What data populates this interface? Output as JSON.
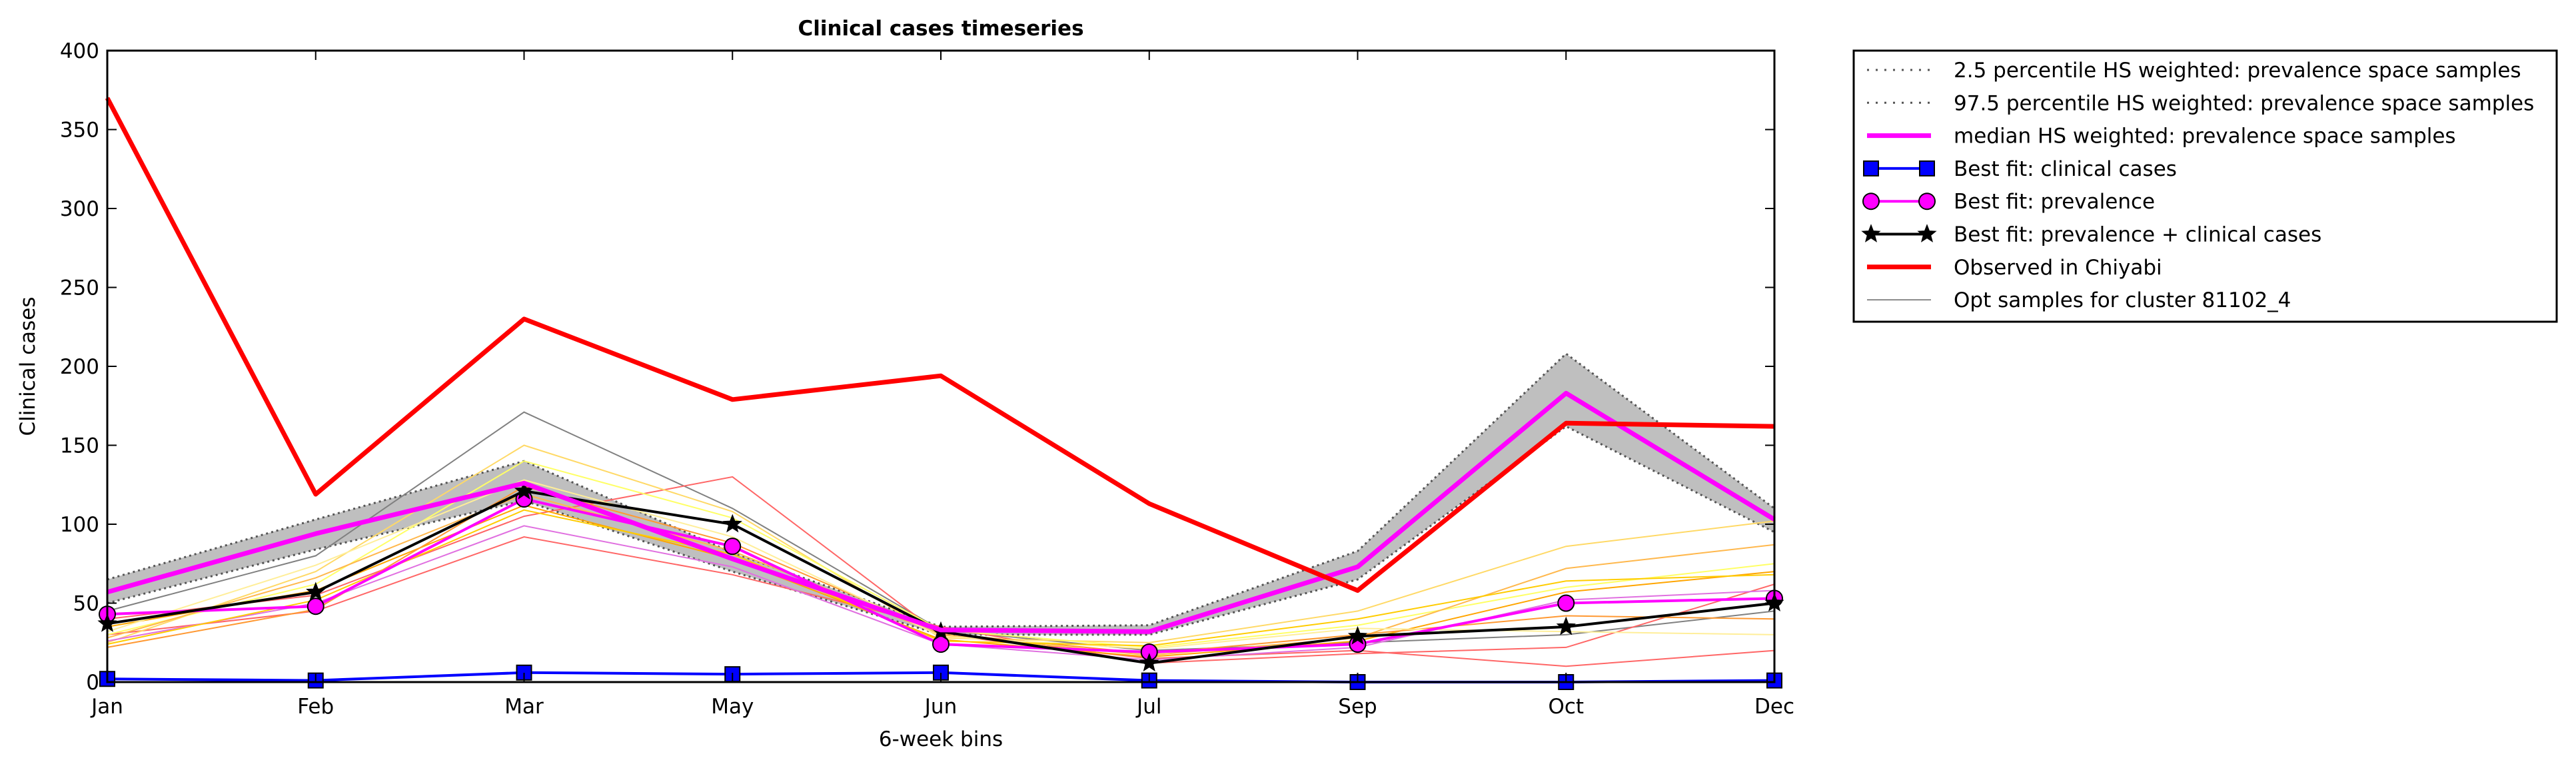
{
  "chart_data": {
    "type": "line",
    "title": "Clinical cases timeseries",
    "xlabel": "6-week bins",
    "ylabel": "Clinical cases",
    "categories": [
      "Jan",
      "Feb",
      "Mar",
      "May",
      "Jun",
      "Jul",
      "Sep",
      "Oct",
      "Dec"
    ],
    "ylim": [
      0,
      400
    ],
    "yticks": [
      "0",
      "50",
      "100",
      "150",
      "200",
      "250",
      "300",
      "350",
      "400"
    ],
    "grid": false,
    "legend_position": "outside-top-right",
    "band": {
      "lower_label": "2.5 percentile HS weighted: prevalence space samples",
      "upper_label": "97.5 percentile HS weighted: prevalence space samples",
      "lower": [
        50,
        84,
        115,
        70,
        30,
        30,
        65,
        162,
        95
      ],
      "upper": [
        65,
        103,
        140,
        82,
        35,
        36,
        83,
        208,
        110
      ],
      "color": "#bfbfbf"
    },
    "series": [
      {
        "name": "median HS weighted: prevalence space samples",
        "values": [
          57,
          94,
          126,
          78,
          33,
          32,
          73,
          183,
          103
        ],
        "color": "#ff00ff",
        "marker": "none",
        "width": 7
      },
      {
        "name": "Best fit: clinical cases",
        "values": [
          2,
          1,
          6,
          5,
          6,
          1,
          0,
          0,
          1
        ],
        "color": "#0000ff",
        "marker": "square",
        "width": 4
      },
      {
        "name": "Best fit: prevalence",
        "values": [
          43,
          48,
          116,
          86,
          24,
          19,
          24,
          50,
          53
        ],
        "color": "#ff00ff",
        "marker": "circle",
        "width": 4
      },
      {
        "name": "Best fit: prevalence + clinical cases",
        "values": [
          37,
          57,
          121,
          100,
          32,
          12,
          29,
          35,
          50
        ],
        "color": "#000000",
        "marker": "star",
        "width": 4
      },
      {
        "name": "Observed in Chiyabi",
        "values": [
          370,
          119,
          230,
          179,
          194,
          113,
          58,
          164,
          162
        ],
        "color": "#ff0000",
        "marker": "none",
        "width": 7
      }
    ],
    "samples": {
      "name": "Opt samples for cluster 81102_4",
      "legend_color": "#888888",
      "lines": [
        {
          "color": "#808080",
          "values": [
            45,
            80,
            171,
            110,
            33,
            20,
            25,
            30,
            45
          ]
        },
        {
          "color": "#ff6666",
          "values": [
            40,
            55,
            105,
            130,
            30,
            15,
            20,
            10,
            20
          ]
        },
        {
          "color": "#ff6666",
          "values": [
            30,
            45,
            92,
            68,
            35,
            12,
            18,
            22,
            62
          ]
        },
        {
          "color": "#ffd966",
          "values": [
            25,
            70,
            150,
            108,
            28,
            25,
            45,
            86,
            102
          ]
        },
        {
          "color": "#ffff66",
          "values": [
            30,
            62,
            140,
            104,
            33,
            22,
            36,
            60,
            75
          ]
        },
        {
          "color": "#ffb84d",
          "values": [
            28,
            66,
            119,
            83,
            30,
            17,
            28,
            72,
            87
          ]
        },
        {
          "color": "#e070e0",
          "values": [
            26,
            50,
            99,
            73,
            24,
            14,
            22,
            52,
            58
          ]
        },
        {
          "color": "#ffa500",
          "values": [
            35,
            58,
            112,
            78,
            27,
            16,
            26,
            57,
            70
          ]
        },
        {
          "color": "#ff9933",
          "values": [
            22,
            46,
            124,
            88,
            31,
            18,
            30,
            42,
            40
          ]
        },
        {
          "color": "#ffee99",
          "values": [
            32,
            74,
            128,
            92,
            29,
            21,
            34,
            32,
            30
          ]
        },
        {
          "color": "#ffcc00",
          "values": [
            24,
            52,
            109,
            81,
            26,
            23,
            40,
            64,
            68
          ]
        }
      ]
    }
  }
}
